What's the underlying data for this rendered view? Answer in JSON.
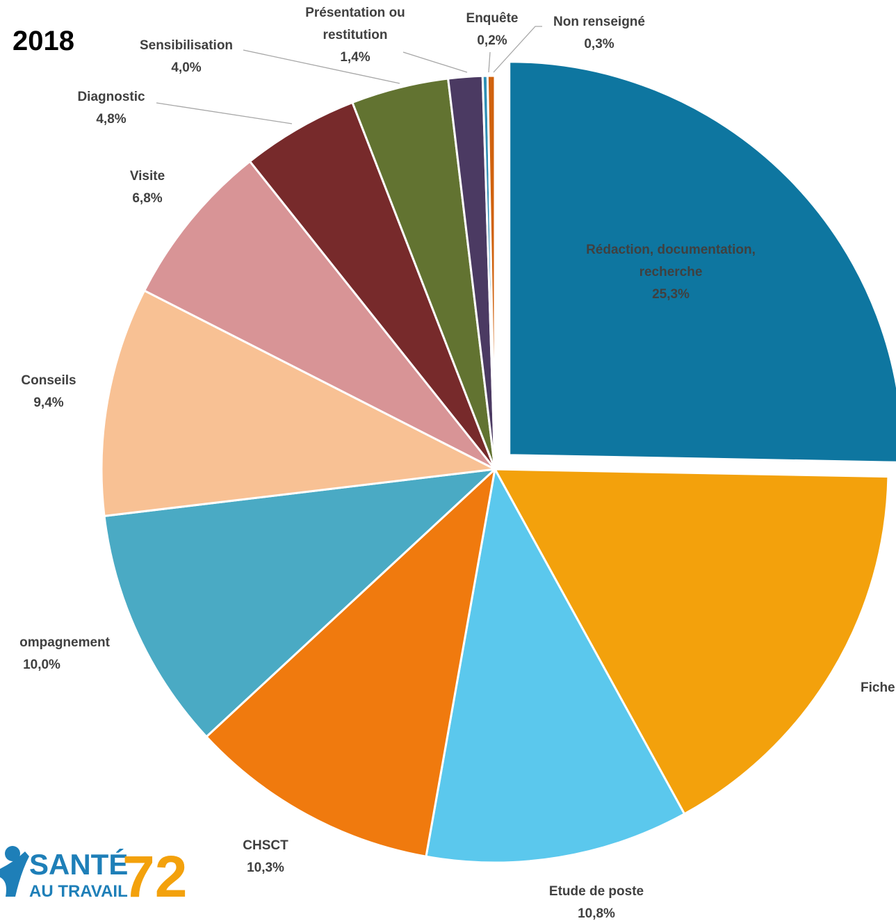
{
  "chart_data": {
    "type": "pie",
    "title": "2018",
    "categories": [
      "Rédaction, documentation,\nrecherche",
      "Fiche",
      "Etude de poste",
      "CHSCT",
      "ompagnement",
      "Conseils",
      "Visite",
      "Diagnostic",
      "Sensibilisation",
      "Présentation ou\nrestitution",
      "Enquête",
      "Non renseigné"
    ],
    "values": [
      25.3,
      16.7,
      10.8,
      10.3,
      10.0,
      9.4,
      6.8,
      4.8,
      4.0,
      1.4,
      0.2,
      0.3
    ],
    "value_labels": [
      "25,3%",
      null,
      "10,8%",
      "10,3%",
      "10,0%",
      "9,4%",
      "6,8%",
      "4,8%",
      "4,0%",
      "1,4%",
      "0,2%",
      "0,3%"
    ],
    "colors": [
      "#0e76a0",
      "#f3a10c",
      "#5bc8ed",
      "#f07a0e",
      "#4aaac4",
      "#f8c194",
      "#d89496",
      "#772a2b",
      "#627331",
      "#4b3a62",
      "#2f8fb5",
      "#d0620e"
    ],
    "exploded": [
      0
    ]
  },
  "logo": {
    "line1": "SANTÉ",
    "line2": "AU TRAVAIL",
    "number": "72"
  }
}
